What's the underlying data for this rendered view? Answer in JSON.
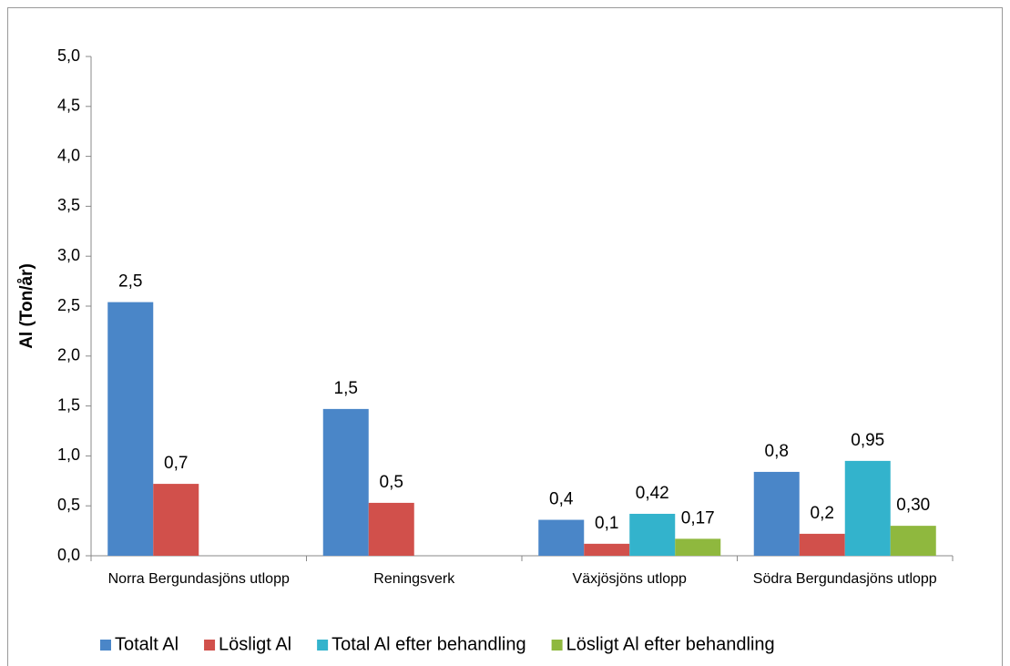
{
  "chart_data": {
    "type": "bar",
    "y_label": "Al (Ton/år)",
    "categories": [
      "Norra Bergundasjöns utlopp",
      "Reningsverk",
      "Växjösjöns utlopp",
      "Södra Bergundasjöns utlopp"
    ],
    "series": [
      {
        "name": "Totalt Al",
        "color": "#4a86c8",
        "values": [
          2.54,
          1.47,
          0.36,
          0.84
        ],
        "value_labels": [
          "2,5",
          "1,5",
          "0,4",
          "0,8"
        ]
      },
      {
        "name": "Lösligt Al",
        "color": "#d1504b",
        "values": [
          0.72,
          0.53,
          0.12,
          0.22
        ],
        "value_labels": [
          "0,7",
          "0,5",
          "0,1",
          "0,2"
        ]
      },
      {
        "name": "Total Al efter behandling",
        "color": "#33b3cc",
        "values": [
          null,
          null,
          0.42,
          0.95
        ],
        "value_labels": [
          null,
          null,
          "0,42",
          "0,95"
        ]
      },
      {
        "name": "Lösligt Al efter behandling",
        "color": "#8fb83e",
        "values": [
          null,
          null,
          0.17,
          0.3
        ],
        "value_labels": [
          null,
          null,
          "0,17",
          "0,30"
        ]
      }
    ],
    "ylim": [
      0,
      5
    ],
    "yticks": [
      {
        "value": 0,
        "label": "0,0"
      },
      {
        "value": 0.5,
        "label": "0,5"
      },
      {
        "value": 1,
        "label": "1,0"
      },
      {
        "value": 1.5,
        "label": "1,5"
      },
      {
        "value": 2,
        "label": "2,0"
      },
      {
        "value": 2.5,
        "label": "2,5"
      },
      {
        "value": 3,
        "label": "3,0"
      },
      {
        "value": 3.5,
        "label": "3,5"
      },
      {
        "value": 4,
        "label": "4,0"
      },
      {
        "value": 4.5,
        "label": "4,5"
      },
      {
        "value": 5,
        "label": "5,0"
      }
    ],
    "legend": "bottom"
  }
}
